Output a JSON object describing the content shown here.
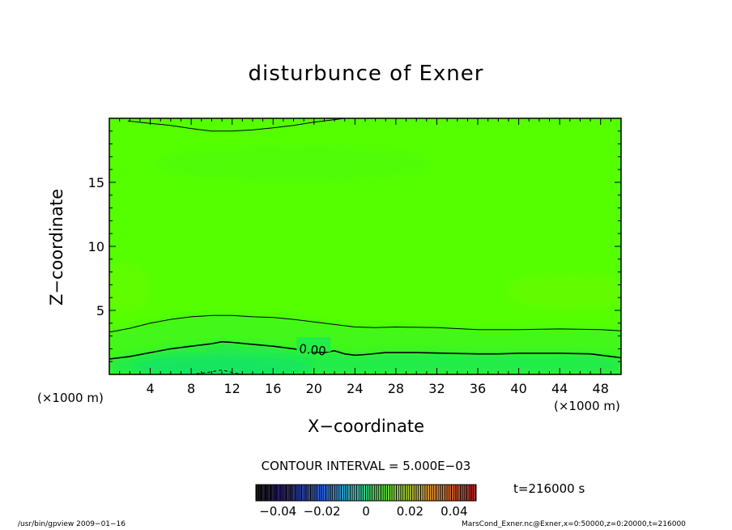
{
  "chart_data": {
    "type": "heatmap",
    "title": "disturbunce of Exner",
    "xlabel": "X−coordinate",
    "ylabel": "Z−coordinate",
    "x_unit_left": "(×1000 m)",
    "x_unit_right": "(×1000 m)",
    "xlim": [
      0,
      50
    ],
    "ylim": [
      0,
      20
    ],
    "x_ticks": [
      "4",
      "8",
      "12",
      "16",
      "20",
      "24",
      "28",
      "32",
      "36",
      "40",
      "44",
      "48"
    ],
    "y_ticks": [
      "5",
      "10",
      "15"
    ],
    "contour_interval_label": "CONTOUR INTERVAL = 5.000E−03",
    "contour_label": "0.00",
    "contours": [
      {
        "level": "-0.005",
        "style": "dashed",
        "points": [
          [
            8.5,
            0.05
          ],
          [
            10,
            0.2
          ],
          [
            11,
            0.35
          ],
          [
            12,
            0.15
          ],
          [
            13,
            0.0
          ]
        ]
      },
      {
        "level": "0.00",
        "style": "solid",
        "points": [
          [
            0,
            1.2
          ],
          [
            2,
            1.4
          ],
          [
            4,
            1.7
          ],
          [
            6,
            2.0
          ],
          [
            8,
            2.2
          ],
          [
            10,
            2.4
          ],
          [
            11,
            2.55
          ],
          [
            12,
            2.5
          ],
          [
            14,
            2.35
          ],
          [
            16,
            2.2
          ],
          [
            18,
            2.0
          ],
          [
            20,
            1.75
          ],
          [
            21,
            1.7
          ],
          [
            22,
            1.85
          ],
          [
            23,
            1.6
          ],
          [
            24,
            1.5
          ],
          [
            25,
            1.55
          ],
          [
            27,
            1.7
          ],
          [
            30,
            1.7
          ],
          [
            33,
            1.65
          ],
          [
            36,
            1.6
          ],
          [
            38,
            1.6
          ],
          [
            40,
            1.65
          ],
          [
            44,
            1.65
          ],
          [
            47,
            1.6
          ],
          [
            50,
            1.3
          ]
        ]
      },
      {
        "level": "0.005",
        "style": "solid",
        "points": [
          [
            0,
            3.3
          ],
          [
            2,
            3.6
          ],
          [
            4,
            4.0
          ],
          [
            6,
            4.3
          ],
          [
            8,
            4.5
          ],
          [
            10,
            4.6
          ],
          [
            12,
            4.6
          ],
          [
            14,
            4.5
          ],
          [
            16,
            4.45
          ],
          [
            18,
            4.3
          ],
          [
            20,
            4.1
          ],
          [
            22,
            3.9
          ],
          [
            24,
            3.7
          ],
          [
            26,
            3.65
          ],
          [
            28,
            3.7
          ],
          [
            32,
            3.65
          ],
          [
            36,
            3.5
          ],
          [
            40,
            3.5
          ],
          [
            44,
            3.55
          ],
          [
            48,
            3.5
          ],
          [
            50,
            3.4
          ]
        ]
      },
      {
        "level": "0.005",
        "style": "solid",
        "points": [
          [
            1.8,
            19.8
          ],
          [
            4,
            19.6
          ],
          [
            6,
            19.45
          ],
          [
            8,
            19.2
          ],
          [
            10,
            19.0
          ],
          [
            12,
            19.0
          ],
          [
            14,
            19.1
          ],
          [
            16,
            19.25
          ],
          [
            18,
            19.45
          ],
          [
            20,
            19.7
          ],
          [
            22,
            19.9
          ],
          [
            23,
            20.0
          ]
        ]
      }
    ],
    "colorbar": {
      "ticks": [
        "−0.04",
        "−0.02",
        "0",
        "0.02",
        "0.04"
      ],
      "tick_values": [
        -0.04,
        -0.02,
        0,
        0.02,
        0.04
      ],
      "range": [
        -0.05,
        0.05
      ]
    },
    "fill_colors": {
      "background": "#55ff00",
      "band_low": "#3cf520",
      "band_mid": "#46f814",
      "near_zero": "#22ec48",
      "lower_core": "#14e560",
      "blob": "#66fb00"
    }
  },
  "time_label": "t=216000 s",
  "footer_left": "/usr/bin/gpview  2009−01−16",
  "footer_right": "MarsCond_Exner.nc@Exner,x=0:50000,z=0:20000,t=216000"
}
